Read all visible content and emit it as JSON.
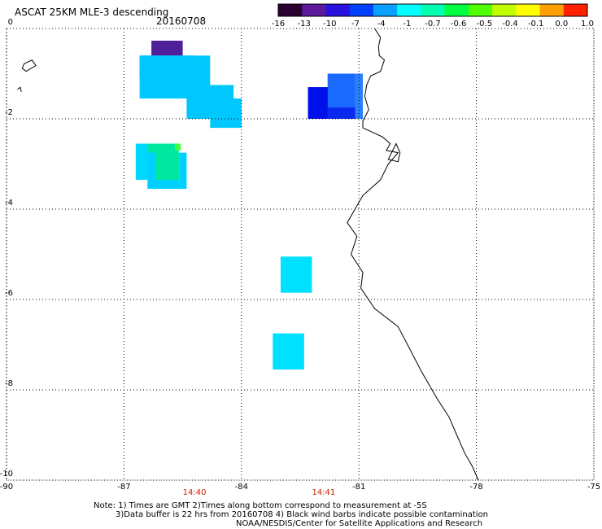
{
  "header": {
    "title": "ASCAT 25KM MLE-3 descending",
    "date": "20160708"
  },
  "colorbar": {
    "labels": [
      "-16",
      "-13",
      "-10",
      "-7",
      "-4",
      "-1",
      "-0.7",
      "-0.6",
      "-0.5",
      "-0.4",
      "-0.1",
      "0.0",
      "1.0"
    ],
    "colors": [
      "#2a0030",
      "#5a1a9a",
      "#2a10dc",
      "#0040ff",
      "#0aa0ff",
      "#00ffff",
      "#00ffb0",
      "#00ff40",
      "#50ff00",
      "#c0ff00",
      "#ffff00",
      "#ffa000",
      "#ff2000"
    ]
  },
  "map": {
    "lon_range": [
      -90,
      -75
    ],
    "lat_range": [
      -10,
      0
    ],
    "lon_ticks": [
      "-90",
      "-87",
      "-84",
      "-81",
      "-78",
      "-75"
    ],
    "lat_ticks": [
      "0",
      "-2",
      "-4",
      "-6",
      "-8",
      "-10"
    ],
    "pass_times": [
      {
        "label": "14:40",
        "lon": -85.2
      },
      {
        "label": "14:41",
        "lon": -81.9
      }
    ],
    "cells": [
      {
        "lon1": -86.3,
        "lon2": -85.5,
        "lat1": -0.27,
        "lat2": -0.6,
        "color": "#50209a"
      },
      {
        "lon1": -86.6,
        "lon2": -85.2,
        "lat1": -0.6,
        "lat2": -1.1,
        "color": "#1060ff"
      },
      {
        "lon1": -86.6,
        "lon2": -84.8,
        "lat1": -0.6,
        "lat2": -1.55,
        "color": "#00c8ff"
      },
      {
        "lon1": -85.4,
        "lon2": -84.2,
        "lat1": -1.25,
        "lat2": -2.0,
        "color": "#00c8ff"
      },
      {
        "lon1": -84.8,
        "lon2": -84.0,
        "lat1": -1.55,
        "lat2": -2.2,
        "color": "#00c8ff"
      },
      {
        "lon1": -86.7,
        "lon2": -85.6,
        "lat1": -2.55,
        "lat2": -3.35,
        "color": "#00d8ff"
      },
      {
        "lon1": -86.4,
        "lon2": -85.6,
        "lat1": -2.55,
        "lat2": -3.35,
        "color": "#00e8a0"
      },
      {
        "lon1": -85.7,
        "lon2": -85.55,
        "lat1": -2.55,
        "lat2": -2.7,
        "color": "#40ff40"
      },
      {
        "lon1": -86.4,
        "lon2": -85.4,
        "lat1": -2.75,
        "lat2": -3.55,
        "color": "#00d0ff"
      },
      {
        "lon1": -86.2,
        "lon2": -85.6,
        "lat1": -2.75,
        "lat2": -3.35,
        "color": "#00e8a0"
      },
      {
        "lon1": -82.3,
        "lon2": -80.9,
        "lat1": -1.3,
        "lat2": -2.0,
        "color": "#0a2af0"
      },
      {
        "lon1": -81.8,
        "lon2": -80.9,
        "lat1": -1.0,
        "lat2": -1.75,
        "color": "#1a6aff"
      },
      {
        "lon1": -81.1,
        "lon2": -80.9,
        "lat1": -1.0,
        "lat2": -2.0,
        "color": "#2a80ff"
      },
      {
        "lon1": -82.3,
        "lon2": -81.8,
        "lat1": -1.3,
        "lat2": -2.0,
        "color": "#0010e8"
      },
      {
        "lon1": -83.0,
        "lon2": -82.2,
        "lat1": -5.05,
        "lat2": -5.85,
        "color": "#00e0ff"
      },
      {
        "lon1": -83.2,
        "lon2": -82.4,
        "lat1": -6.75,
        "lat2": -7.55,
        "color": "#00e0ff"
      }
    ]
  },
  "notes": {
    "line1": "Note: 1) Times are GMT 2)Times along bottom correspond to measurement at -5S",
    "line2": "3)Data buffer is 22 hrs from 20160708 4) Black wind barbs indicate possible contamination",
    "line3": "NOAA/NESDIS/Center for Satellite Applications and Research"
  }
}
